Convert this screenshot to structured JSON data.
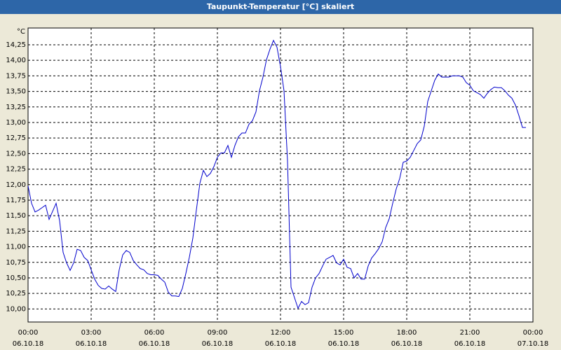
{
  "chart_data": {
    "type": "line",
    "title": "Taupunkt-Temperatur [°C] skaliert",
    "y_unit": "°C",
    "x": [
      0,
      10,
      20,
      30,
      40,
      50,
      60,
      70,
      80,
      90,
      100,
      110,
      120,
      130,
      140,
      150,
      160,
      170,
      180,
      190,
      200,
      210,
      220,
      230,
      240,
      250,
      260,
      270,
      280,
      290,
      300,
      310,
      320,
      330,
      340,
      350,
      360,
      370,
      380,
      390,
      400,
      410,
      420,
      430,
      440,
      450,
      460,
      470,
      480,
      490,
      500,
      510,
      520,
      530,
      540,
      550,
      560,
      570,
      580,
      590,
      600,
      610,
      620,
      630,
      640,
      650,
      660,
      670,
      680,
      690,
      700,
      710,
      720,
      730,
      740,
      750,
      760,
      770,
      780,
      790,
      800,
      810,
      820,
      830,
      840,
      850,
      860,
      870,
      880,
      890,
      900,
      910,
      920,
      930,
      940,
      950,
      960,
      970,
      980,
      990,
      1000,
      1010,
      1020,
      1030,
      1040,
      1050,
      1060,
      1070,
      1080,
      1090,
      1100,
      1110,
      1120,
      1130,
      1140,
      1150,
      1160,
      1170,
      1180,
      1190,
      1200,
      1210,
      1220,
      1230,
      1240,
      1250,
      1260,
      1270,
      1280,
      1290,
      1300,
      1310,
      1320,
      1330,
      1340,
      1350,
      1360,
      1370,
      1380,
      1390,
      1400,
      1410,
      1420
    ],
    "series": [
      {
        "name": "Taupunkt-Temperatur",
        "color": "#0000cc",
        "values": [
          11.98,
          11.7,
          11.56,
          11.59,
          11.63,
          11.67,
          11.44,
          11.57,
          11.7,
          11.42,
          10.91,
          10.74,
          10.62,
          10.74,
          10.96,
          10.94,
          10.83,
          10.78,
          10.63,
          10.48,
          10.38,
          10.33,
          10.32,
          10.37,
          10.32,
          10.28,
          10.63,
          10.87,
          10.94,
          10.91,
          10.78,
          10.71,
          10.65,
          10.63,
          10.57,
          10.55,
          10.55,
          10.54,
          10.48,
          10.43,
          10.27,
          10.21,
          10.21,
          10.2,
          10.33,
          10.57,
          10.83,
          11.14,
          11.59,
          12.02,
          12.23,
          12.13,
          12.18,
          12.29,
          12.44,
          12.51,
          12.51,
          12.63,
          12.44,
          12.63,
          12.77,
          12.83,
          12.83,
          12.97,
          13.03,
          13.17,
          13.51,
          13.73,
          14.01,
          14.18,
          14.32,
          14.21,
          13.9,
          13.51,
          12.38,
          10.35,
          10.18,
          10.01,
          10.12,
          10.07,
          10.1,
          10.35,
          10.5,
          10.57,
          10.69,
          10.8,
          10.83,
          10.86,
          10.74,
          10.71,
          10.8,
          10.67,
          10.65,
          10.5,
          10.57,
          10.48,
          10.48,
          10.69,
          10.82,
          10.89,
          10.97,
          11.08,
          11.31,
          11.45,
          11.7,
          11.93,
          12.1,
          12.36,
          12.38,
          12.44,
          12.55,
          12.66,
          12.72,
          12.94,
          13.34,
          13.51,
          13.68,
          13.78,
          13.73,
          13.73,
          13.73,
          13.75,
          13.75,
          13.75,
          13.73,
          13.64,
          13.6,
          13.51,
          13.48,
          13.45,
          13.39,
          13.47,
          13.53,
          13.57,
          13.56,
          13.56,
          13.51,
          13.44,
          13.39,
          13.28,
          13.11,
          12.92,
          12.92
        ]
      }
    ],
    "xlim": [
      0,
      1440
    ],
    "xticks": [
      {
        "value": 0,
        "label": [
          "00:00",
          "06.10.18"
        ]
      },
      {
        "value": 180,
        "label": [
          "03:00",
          "06.10.18"
        ]
      },
      {
        "value": 360,
        "label": [
          "06:00",
          "06.10.18"
        ]
      },
      {
        "value": 540,
        "label": [
          "09:00",
          "06.10.18"
        ]
      },
      {
        "value": 720,
        "label": [
          "12:00",
          "06.10.18"
        ]
      },
      {
        "value": 900,
        "label": [
          "15:00",
          "06.10.18"
        ]
      },
      {
        "value": 1080,
        "label": [
          "18:00",
          "06.10.18"
        ]
      },
      {
        "value": 1260,
        "label": [
          "21:00",
          "06.10.18"
        ]
      },
      {
        "value": 1440,
        "label": [
          "00:00",
          "07.10.18"
        ]
      }
    ],
    "ylim": [
      9.79,
      14.52
    ],
    "yticks": [
      {
        "value": 10,
        "label": "10,00"
      },
      {
        "value": 10.25,
        "label": "10,25"
      },
      {
        "value": 10.5,
        "label": "10,50"
      },
      {
        "value": 10.75,
        "label": "10,75"
      },
      {
        "value": 11,
        "label": "11,00"
      },
      {
        "value": 11.25,
        "label": "11,25"
      },
      {
        "value": 11.5,
        "label": "11,50"
      },
      {
        "value": 11.75,
        "label": "11,75"
      },
      {
        "value": 12,
        "label": "12,00"
      },
      {
        "value": 12.25,
        "label": "12,25"
      },
      {
        "value": 12.5,
        "label": "12,50"
      },
      {
        "value": 12.75,
        "label": "12,75"
      },
      {
        "value": 13,
        "label": "13,00"
      },
      {
        "value": 13.25,
        "label": "13,25"
      },
      {
        "value": 13.5,
        "label": "13,50"
      },
      {
        "value": 13.75,
        "label": "13,75"
      },
      {
        "value": 14,
        "label": "14,00"
      },
      {
        "value": 14.25,
        "label": "14,25"
      }
    ],
    "grid": true
  }
}
